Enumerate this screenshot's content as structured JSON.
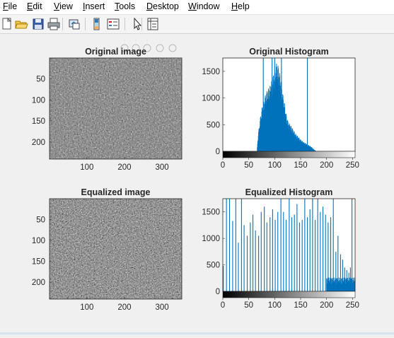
{
  "menu": [
    {
      "name": "menu-file",
      "accel": "F",
      "rest": "ile",
      "x": 4
    },
    {
      "name": "menu-edit",
      "accel": "E",
      "rest": "dit",
      "x": 38
    },
    {
      "name": "menu-view",
      "accel": "V",
      "rest": "iew",
      "x": 76
    },
    {
      "name": "menu-insert",
      "accel": "I",
      "rest": "nsert",
      "x": 117
    },
    {
      "name": "menu-tools",
      "accel": "T",
      "rest": "ools",
      "x": 162
    },
    {
      "name": "menu-desktop",
      "accel": "D",
      "rest": "esktop",
      "x": 207
    },
    {
      "name": "menu-window",
      "accel": "W",
      "rest": "indow",
      "x": 266
    },
    {
      "name": "menu-help",
      "accel": "H",
      "rest": "elp",
      "x": 327
    }
  ],
  "toolbar": [
    "new-figure-icon",
    "open-file-icon",
    "save-icon",
    "print-icon",
    "link-plot-icon",
    "insert-colorbar-icon",
    "insert-legend-icon",
    "edit-plot-icon",
    "property-inspector-icon"
  ],
  "axes_toolbar": [
    "brush-icon",
    "data-cursor-icon",
    "zoom-in-icon",
    "zoom-out-icon",
    "pan-icon"
  ],
  "colors": {
    "bar": "#0072bd",
    "axis": "#262626",
    "bg": "#f0f0f0"
  },
  "chart_data": [
    {
      "type": "image",
      "title": "Original image",
      "xticks": [
        100,
        200,
        300
      ],
      "yticks": [
        50,
        100,
        150,
        200
      ],
      "xlim": [
        0.5,
        352.5
      ],
      "ylim": [
        0.5,
        240.5
      ],
      "colormap": "gray"
    },
    {
      "type": "bar",
      "title": "Original Histogram",
      "xticks": [
        0,
        50,
        100,
        150,
        200,
        250
      ],
      "yticks": [
        0,
        500,
        1000,
        1500
      ],
      "xlim": [
        0,
        255
      ],
      "ylim": [
        0,
        1750
      ],
      "colorbar": "gray",
      "x_range": [
        66,
        180
      ],
      "spikes": [
        {
          "x": 78,
          "y": 1750
        },
        {
          "x": 95,
          "y": 1750
        },
        {
          "x": 100,
          "y": 1750
        },
        {
          "x": 113,
          "y": 1750
        },
        {
          "x": 163,
          "y": 1750
        }
      ],
      "envelope": [
        [
          66,
          0
        ],
        [
          68,
          300
        ],
        [
          70,
          450
        ],
        [
          72,
          600
        ],
        [
          75,
          800
        ],
        [
          78,
          900
        ],
        [
          82,
          1050
        ],
        [
          86,
          1150
        ],
        [
          90,
          1200
        ],
        [
          95,
          1350
        ],
        [
          100,
          1500
        ],
        [
          103,
          1650
        ],
        [
          107,
          1600
        ],
        [
          110,
          1450
        ],
        [
          113,
          1300
        ],
        [
          116,
          1050
        ],
        [
          119,
          900
        ],
        [
          122,
          700
        ],
        [
          126,
          550
        ],
        [
          130,
          500
        ],
        [
          135,
          420
        ],
        [
          140,
          330
        ],
        [
          145,
          280
        ],
        [
          150,
          220
        ],
        [
          155,
          180
        ],
        [
          160,
          150
        ],
        [
          165,
          120
        ],
        [
          170,
          90
        ],
        [
          175,
          40
        ],
        [
          180,
          0
        ]
      ]
    },
    {
      "type": "image",
      "title": "Equalized image",
      "xticks": [
        100,
        200,
        300
      ],
      "yticks": [
        50,
        100,
        150,
        200
      ],
      "xlim": [
        0.5,
        352.5
      ],
      "ylim": [
        0.5,
        240.5
      ],
      "colormap": "gray"
    },
    {
      "type": "bar",
      "title": "Equalized Histogram",
      "xticks": [
        0,
        50,
        100,
        150,
        200,
        250
      ],
      "yticks": [
        0,
        500,
        1000,
        1500
      ],
      "xlim": [
        0,
        255
      ],
      "ylim": [
        0,
        1750
      ],
      "colorbar": "gray",
      "x_range": [
        0,
        255
      ],
      "spikes": [
        {
          "x": 1,
          "y": 480
        },
        {
          "x": 7,
          "y": 1750
        },
        {
          "x": 13,
          "y": 1750
        },
        {
          "x": 19,
          "y": 1330
        },
        {
          "x": 25,
          "y": 1750
        },
        {
          "x": 30,
          "y": 920
        },
        {
          "x": 36,
          "y": 1750
        },
        {
          "x": 41,
          "y": 1250
        },
        {
          "x": 47,
          "y": 1050
        },
        {
          "x": 53,
          "y": 1300
        },
        {
          "x": 58,
          "y": 1450
        },
        {
          "x": 63,
          "y": 1150
        },
        {
          "x": 69,
          "y": 1050
        },
        {
          "x": 74,
          "y": 1500
        },
        {
          "x": 80,
          "y": 1600
        },
        {
          "x": 85,
          "y": 1300
        },
        {
          "x": 91,
          "y": 1400
        },
        {
          "x": 96,
          "y": 1550
        },
        {
          "x": 101,
          "y": 1350
        },
        {
          "x": 106,
          "y": 1500
        },
        {
          "x": 112,
          "y": 1750
        },
        {
          "x": 117,
          "y": 1500
        },
        {
          "x": 122,
          "y": 1350
        },
        {
          "x": 128,
          "y": 1750
        },
        {
          "x": 133,
          "y": 1400
        },
        {
          "x": 138,
          "y": 1450
        },
        {
          "x": 143,
          "y": 1650
        },
        {
          "x": 148,
          "y": 1300
        },
        {
          "x": 153,
          "y": 1350
        },
        {
          "x": 158,
          "y": 1750
        },
        {
          "x": 163,
          "y": 1400
        },
        {
          "x": 168,
          "y": 1550
        },
        {
          "x": 173,
          "y": 1750
        },
        {
          "x": 178,
          "y": 1350
        },
        {
          "x": 183,
          "y": 1750
        },
        {
          "x": 188,
          "y": 1500
        },
        {
          "x": 193,
          "y": 1600
        },
        {
          "x": 198,
          "y": 1450
        },
        {
          "x": 203,
          "y": 1300
        },
        {
          "x": 208,
          "y": 1400
        },
        {
          "x": 213,
          "y": 1750
        },
        {
          "x": 218,
          "y": 750
        },
        {
          "x": 222,
          "y": 1050
        },
        {
          "x": 227,
          "y": 700
        },
        {
          "x": 231,
          "y": 600
        },
        {
          "x": 235,
          "y": 450
        },
        {
          "x": 239,
          "y": 400
        },
        {
          "x": 243,
          "y": 350
        },
        {
          "x": 246,
          "y": 450
        },
        {
          "x": 249,
          "y": 1750
        }
      ]
    }
  ]
}
